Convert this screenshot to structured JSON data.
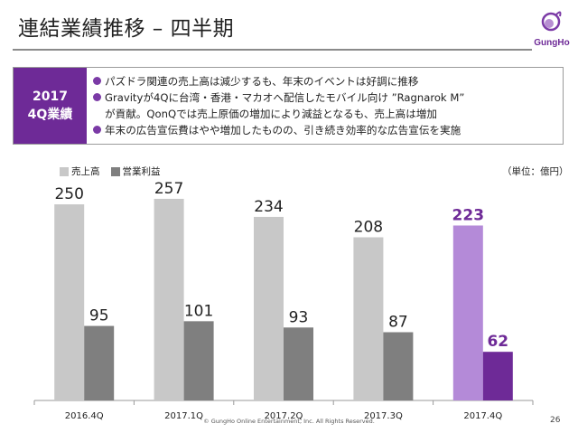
{
  "title": "連結業績推移 – 四半期",
  "logo": {
    "text": "GungHo",
    "colors": [
      "#7b3aa6",
      "#b78ed2"
    ]
  },
  "summary": {
    "tag_year": "2017",
    "tag_label": "4Q業績",
    "bullets": [
      {
        "lines": [
          "パズドラ関連の売上高は減少するも、年末のイベントは好調に推移"
        ]
      },
      {
        "lines": [
          "Gravityが4Qに台湾・香港・マカオへ配信したモバイル向け ”Ragnarok M”",
          "が貢献。QonQでは売上原価の増加により減益となるも、売上高は増加"
        ]
      },
      {
        "lines": [
          "年末の広告宣伝費はやや増加したものの、引き続き効率的な広告宣伝を実施"
        ]
      }
    ]
  },
  "legend": {
    "sales": "売上高",
    "operating_income": "営業利益"
  },
  "unit": "（単位：億円）",
  "chart_data": {
    "type": "bar",
    "categories": [
      "2016.4Q",
      "2017.1Q",
      "2017.2Q",
      "2017.3Q",
      "2017.4Q"
    ],
    "series": [
      {
        "name": "売上高",
        "values": [
          250,
          257,
          234,
          208,
          223
        ]
      },
      {
        "name": "営業利益",
        "values": [
          95,
          101,
          93,
          87,
          62
        ]
      }
    ],
    "ylim": [
      0,
      280
    ],
    "grid": false,
    "legend_position": "top-left",
    "colors": {
      "sales": "#c8c8c8",
      "operating_income": "#7f7f7f",
      "highlight_sales": "#b48ad8",
      "highlight_income": "#6e2a97",
      "highlight_label": "#6e2a97"
    },
    "highlight_index": 4
  },
  "footer": "© GungHo Online Entertainment, Inc. All Rights Reserved.",
  "page_number": "26"
}
